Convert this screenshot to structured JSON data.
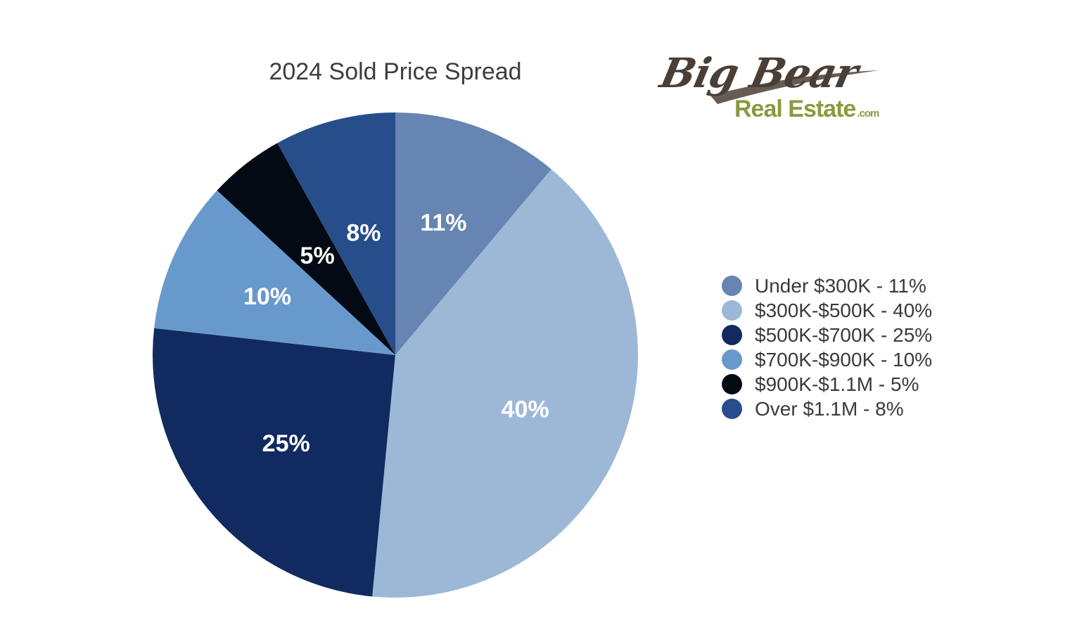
{
  "chart_data": {
    "type": "pie",
    "title": "2024 Sold Price Spread",
    "slices": [
      {
        "label": "Under $300K - 11%",
        "value": 11,
        "display": "11%",
        "color": "#6785b2"
      },
      {
        "label": "$300K-$500K - 40%",
        "value": 40,
        "display": "40%",
        "color": "#9db8d7"
      },
      {
        "label": "$500K-$700K - 25%",
        "value": 25,
        "display": "25%",
        "color": "#112b60"
      },
      {
        "label": "$700K-$900K - 10%",
        "value": 10,
        "display": "10%",
        "color": "#6899cc"
      },
      {
        "label": "$900K-$1.1M - 5%",
        "value": 5,
        "display": "5%",
        "color": "#030a13"
      },
      {
        "label": "Over $1.1M - 8%",
        "value": 8,
        "display": "8%",
        "color": "#274d8b"
      }
    ],
    "legend_position": "right"
  },
  "logo": {
    "line1": "Big Bear",
    "line2": "Real Estate",
    "suffix": ".com"
  }
}
